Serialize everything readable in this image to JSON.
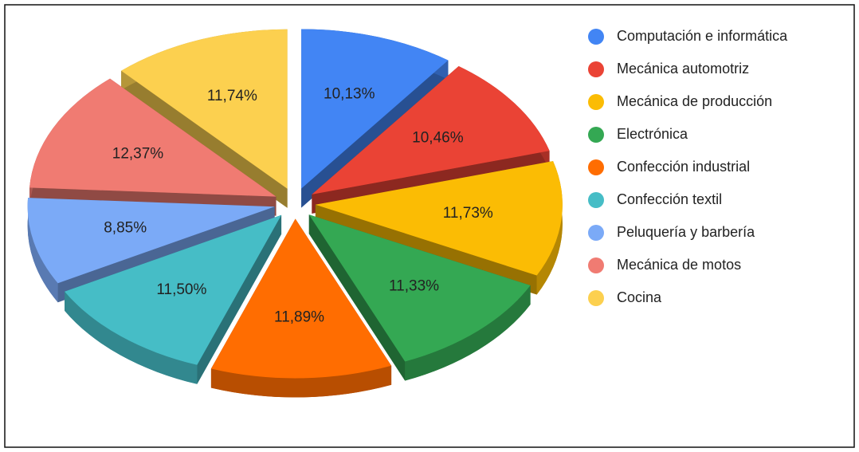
{
  "chart_data": {
    "type": "pie",
    "categories": [
      "Computación e informática",
      "Mecánica automotriz",
      "Mecánica de producción",
      "Electrónica",
      "Confección industrial",
      "Confección textil",
      "Peluquería y barbería",
      "Mecánica de motos",
      "Cocina"
    ],
    "values": [
      10.13,
      10.46,
      11.73,
      11.33,
      11.89,
      11.5,
      8.85,
      12.37,
      11.74
    ],
    "value_labels": [
      "10,13%",
      "10,46%",
      "11,73%",
      "11,33%",
      "11,89%",
      "11,50%",
      "8,85%",
      "12,37%",
      "11,74%"
    ],
    "colors": [
      "#4285f4",
      "#ea4335",
      "#fbbc04",
      "#34a853",
      "#ff6d01",
      "#46bdc6",
      "#7baaf7",
      "#f07b72",
      "#fcd04f"
    ],
    "legend": "right"
  }
}
